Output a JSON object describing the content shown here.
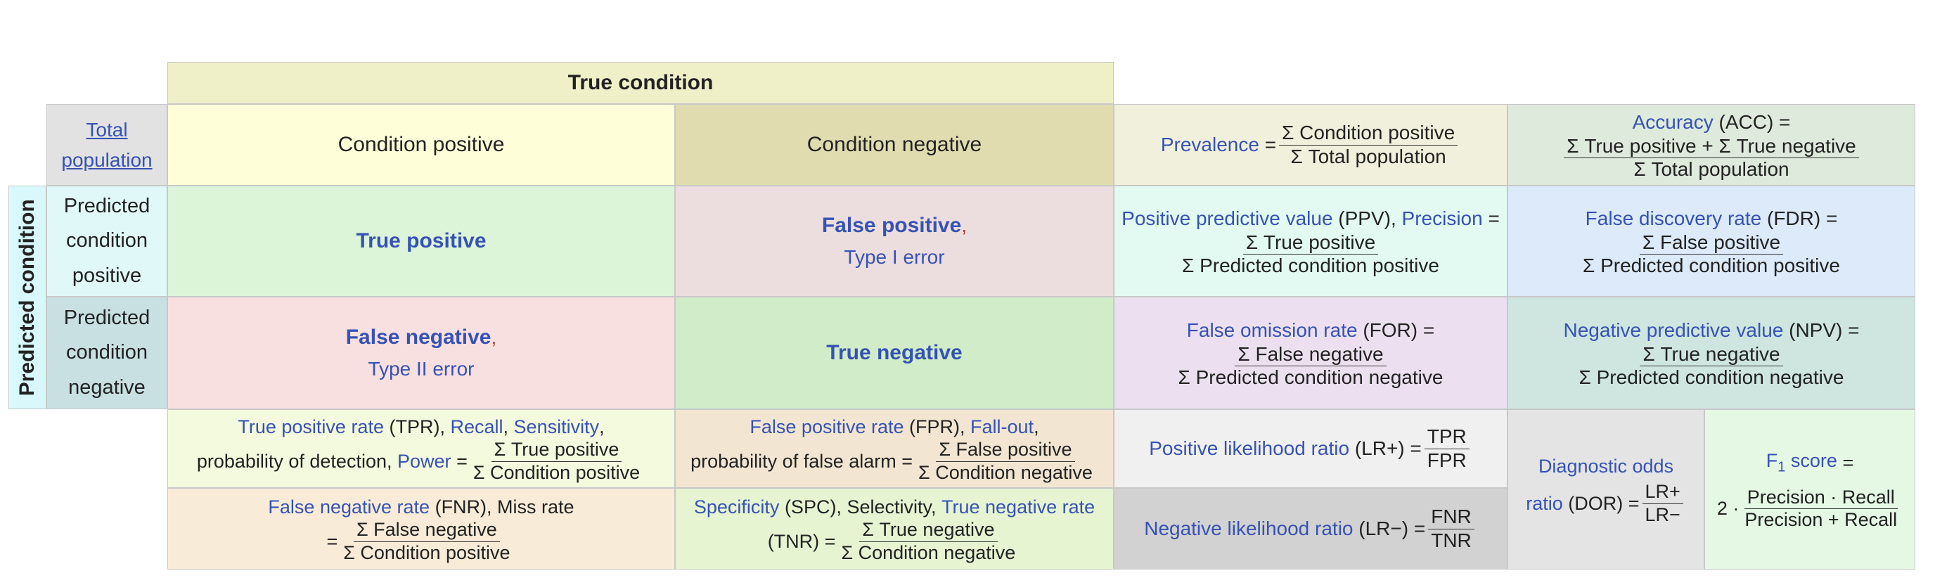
{
  "header": {
    "true_condition": "True condition",
    "total_population": "Total population",
    "condition_positive": "Condition positive",
    "condition_negative": "Condition negative",
    "predicted_condition": "Predicted condition",
    "predicted_condition_positive": "Predicted condition positive",
    "predicted_condition_negative": "Predicted condition negative"
  },
  "outcomes": {
    "true_positive": "True positive",
    "false_positive": "False positive",
    "type_i_error": "Type I error",
    "false_negative": "False negative",
    "type_ii_error": "Type II error",
    "true_negative": "True negative",
    "comma": ","
  },
  "metrics": {
    "prevalence": {
      "label": "Prevalence",
      "eq": "=",
      "num": "Σ Condition positive",
      "den": "Σ Total population"
    },
    "accuracy": {
      "label": "Accuracy",
      "abbr": "(ACC) =",
      "num": "Σ True positive + Σ True negative",
      "den": "Σ Total population"
    },
    "ppv": {
      "label": "Positive predictive value",
      "abbr": "(PPV),",
      "alt": "Precision",
      "eq": "=",
      "num": "Σ True positive",
      "den": "Σ Predicted condition positive"
    },
    "fdr": {
      "label": "False discovery rate",
      "abbr": "(FDR) =",
      "num": "Σ False positive",
      "den": "Σ Predicted condition positive"
    },
    "for": {
      "label": "False omission rate",
      "abbr": "(FOR) =",
      "num": "Σ False negative",
      "den": "Σ Predicted condition negative"
    },
    "npv": {
      "label": "Negative predictive value",
      "abbr": "(NPV) =",
      "num": "Σ True negative",
      "den": "Σ Predicted condition negative"
    },
    "tpr": {
      "label": "True positive rate",
      "abbr": "(TPR),",
      "recall": "Recall",
      "sensitivity": "Sensitivity",
      "sep": ",",
      "line2": "probability of detection,",
      "power": "Power",
      "eq": "=",
      "num": "Σ True positive",
      "den": "Σ Condition positive"
    },
    "fpr": {
      "label": "False positive rate",
      "abbr": "(FPR),",
      "fallout": "Fall-out",
      "sep": ",",
      "line2": "probability of false alarm =",
      "num": "Σ False positive",
      "den": "Σ Condition negative"
    },
    "lr_pos": {
      "label": "Positive likelihood ratio",
      "abbr": "(LR+) =",
      "num": "TPR",
      "den": "FPR"
    },
    "dor": {
      "label": "Diagnostic odds",
      "line2": "ratio",
      "abbr": "(DOR) =",
      "num": "LR+",
      "den": "LR−"
    },
    "f1": {
      "label": "F",
      "sub": "1",
      "label_rest": "score",
      "eq": "=",
      "prefix": "2 ·",
      "num": "Precision · Recall",
      "den": "Precision + Recall"
    },
    "fnr": {
      "label": "False negative rate",
      "abbr": "(FNR), Miss rate",
      "eq": "=",
      "num": "Σ False negative",
      "den": "Σ Condition positive"
    },
    "spc": {
      "label": "Specificity",
      "abbr": "(SPC), Selectivity,",
      "tnr": "True negative rate",
      "line2": "(TNR) =",
      "num": "Σ True negative",
      "den": "Σ Condition negative"
    },
    "lr_neg": {
      "label": "Negative likelihood ratio",
      "abbr": "(LR−) =",
      "num": "FNR",
      "den": "TNR"
    }
  },
  "colors": {
    "true_condition": "#efefc8",
    "total_population": "#e2e2e2",
    "cond_pos": "#fefed8",
    "cond_neg": "#e0dcb0",
    "predicted_condition": "#d8f8fb",
    "pred_pos": "#e0f8f8",
    "pred_neg": "#c8e0e2",
    "tp": "#dcf4d8",
    "fp": "#ecdede",
    "fn": "#f8e0e0",
    "tn": "#d0ecc8",
    "prevalence": "#f0f0dc",
    "accuracy": "#deeadb",
    "ppv": "#e2faf2",
    "fdr": "#dceafa",
    "for": "#ece0f0",
    "npv": "#cfe6e0",
    "tpr": "#f4fade",
    "fpr": "#f2e6d2",
    "lr_pos": "#f0f0f0",
    "dor": "#e4e4e4",
    "f1": "#e4f8e4",
    "fnr": "#f8ecd8",
    "spc": "#e6f4d2",
    "lr_neg": "#d2d2d2"
  }
}
